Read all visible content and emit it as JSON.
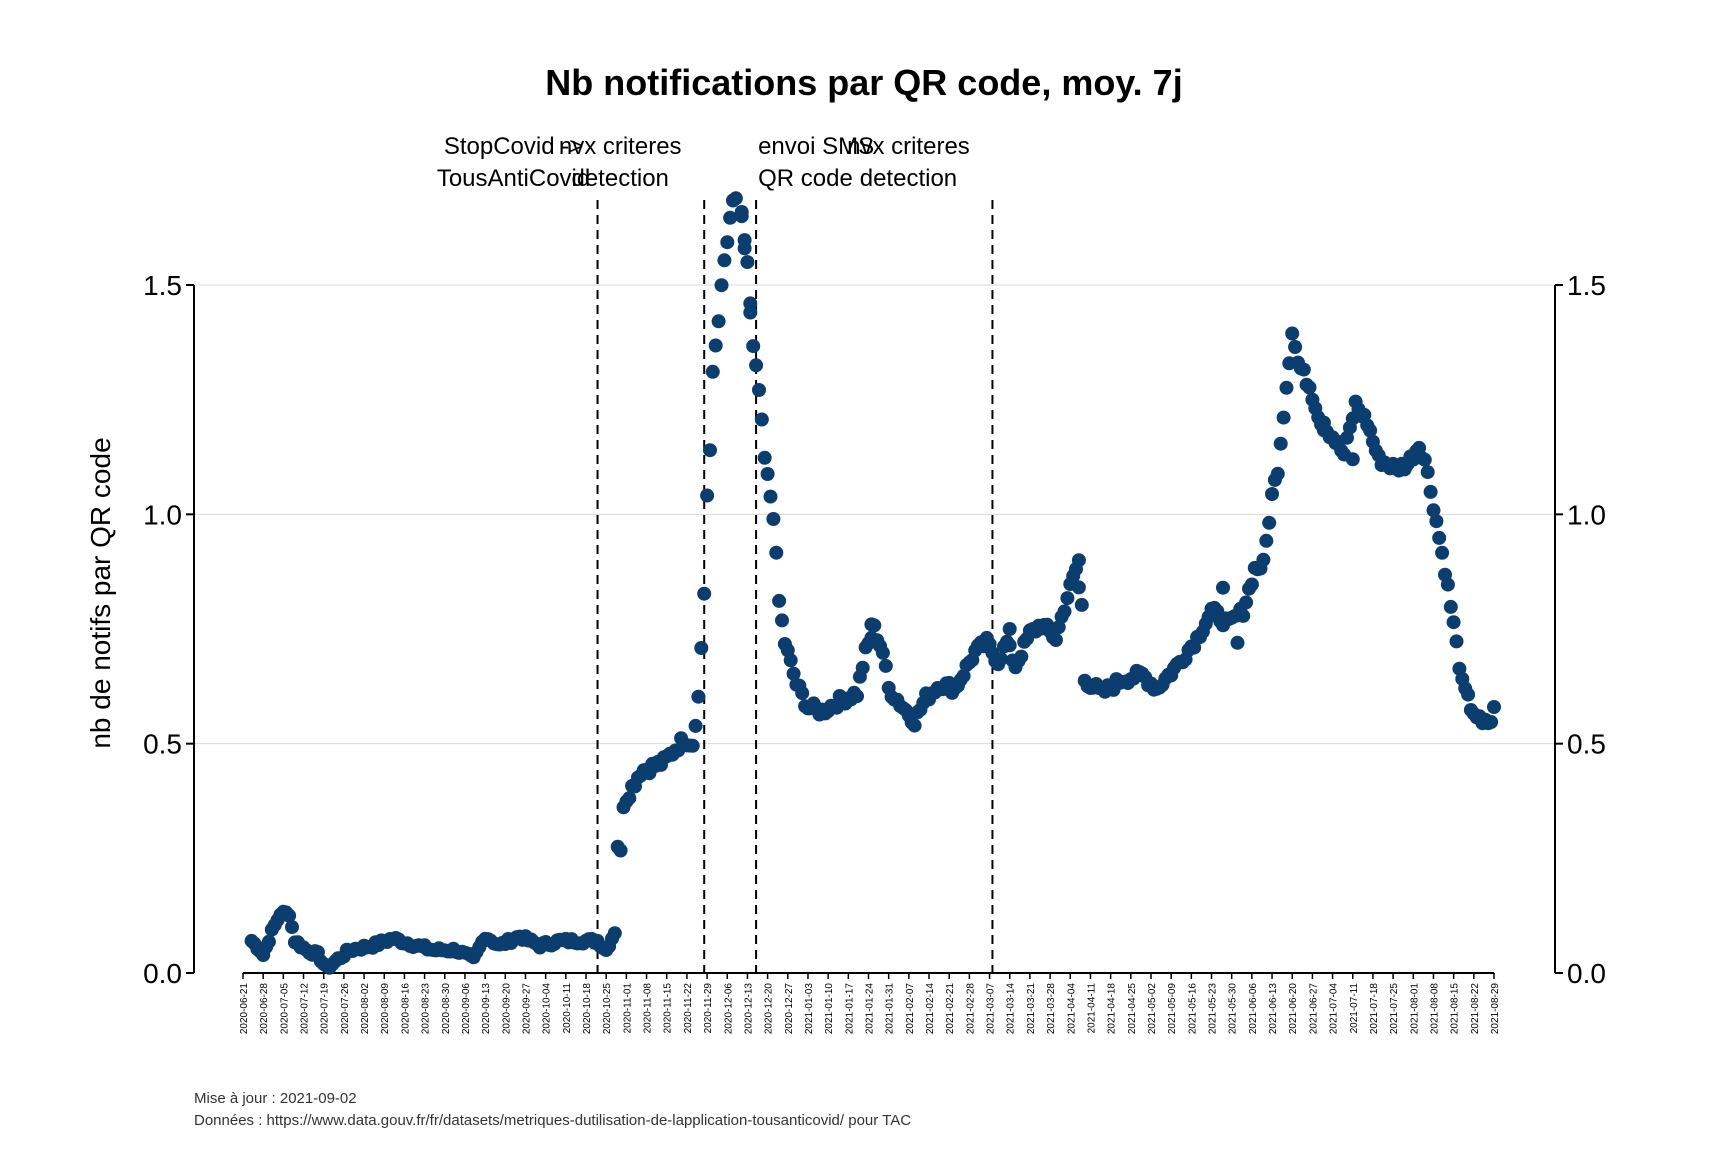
{
  "chart_data": {
    "type": "scatter",
    "title": "Nb notifications par QR code, moy. 7j",
    "ylabel": "nb de notifs par QR code",
    "ylim": [
      0,
      1.5
    ],
    "yticks": [
      "0.0",
      "0.5",
      "1.0",
      "1.5"
    ],
    "y_axis_right": true,
    "grid": "horizontal",
    "point_color": "#0b3d6e",
    "x_start": "2020-06-21",
    "x_end": "2021-09-02",
    "x_ticks": [
      "2020-06-21",
      "2020-06-28",
      "2020-07-05",
      "2020-07-12",
      "2020-07-19",
      "2020-07-26",
      "2020-08-02",
      "2020-08-09",
      "2020-08-16",
      "2020-08-23",
      "2020-08-30",
      "2020-09-06",
      "2020-09-13",
      "2020-09-20",
      "2020-09-27",
      "2020-10-04",
      "2020-10-11",
      "2020-10-18",
      "2020-10-25",
      "2020-11-01",
      "2020-11-08",
      "2020-11-15",
      "2020-11-22",
      "2020-11-29",
      "2020-12-06",
      "2020-12-13",
      "2020-12-20",
      "2020-12-27",
      "2021-01-03",
      "2021-01-10",
      "2021-01-17",
      "2021-01-24",
      "2021-01-31",
      "2021-02-07",
      "2021-02-14",
      "2021-02-21",
      "2021-02-28",
      "2021-03-07",
      "2021-03-14",
      "2021-03-21",
      "2021-03-28",
      "2021-04-04",
      "2021-04-11",
      "2021-04-18",
      "2021-04-25",
      "2021-05-02",
      "2021-05-09",
      "2021-05-16",
      "2021-05-23",
      "2021-05-30",
      "2021-06-06",
      "2021-06-13",
      "2021-06-20",
      "2021-06-27",
      "2021-07-04",
      "2021-07-11",
      "2021-07-18",
      "2021-07-25",
      "2021-08-01",
      "2021-08-08",
      "2021-08-15",
      "2021-08-22",
      "2021-08-29"
    ],
    "annotations": [
      {
        "date": "2020-10-22",
        "line1": "StopCovid ->",
        "line2": "TousAntiCovid"
      },
      {
        "date": "2020-11-28",
        "line1": "nvx criteres",
        "line2": "detection"
      },
      {
        "date": "2020-12-16",
        "line1": "envoi SMS",
        "line2": "QR code",
        "align": "start"
      },
      {
        "date": "2021-03-08",
        "line1": "nvx criteres",
        "line2": "detection"
      }
    ],
    "knots": [
      [
        "2020-06-24",
        0.07
      ],
      [
        "2020-06-27",
        0.05
      ],
      [
        "2020-06-28",
        0.04
      ],
      [
        "2020-07-01",
        0.09
      ],
      [
        "2020-07-04",
        0.13
      ],
      [
        "2020-07-07",
        0.13
      ],
      [
        "2020-07-09",
        0.07
      ],
      [
        "2020-07-13",
        0.05
      ],
      [
        "2020-07-17",
        0.04
      ],
      [
        "2020-07-20",
        0.01
      ],
      [
        "2020-07-24",
        0.03
      ],
      [
        "2020-07-28",
        0.05
      ],
      [
        "2020-08-05",
        0.06
      ],
      [
        "2020-08-12",
        0.075
      ],
      [
        "2020-08-20",
        0.06
      ],
      [
        "2020-08-26",
        0.05
      ],
      [
        "2020-09-03",
        0.05
      ],
      [
        "2020-09-09",
        0.03
      ],
      [
        "2020-09-13",
        0.08
      ],
      [
        "2020-09-18",
        0.06
      ],
      [
        "2020-09-25",
        0.08
      ],
      [
        "2020-10-02",
        0.06
      ],
      [
        "2020-10-09",
        0.07
      ],
      [
        "2020-10-16",
        0.07
      ],
      [
        "2020-10-22",
        0.07
      ],
      [
        "2020-10-25",
        0.05
      ],
      [
        "2020-10-28",
        0.09
      ],
      [
        "2020-10-29",
        0.28
      ],
      [
        "2020-10-30",
        0.26
      ],
      [
        "2020-10-31",
        0.37
      ],
      [
        "2020-11-06",
        0.44
      ],
      [
        "2020-11-14",
        0.46
      ],
      [
        "2020-11-21",
        0.51
      ],
      [
        "2020-11-24",
        0.5
      ],
      [
        "2020-11-26",
        0.6
      ],
      [
        "2020-11-27",
        0.71
      ],
      [
        "2020-11-28",
        0.83
      ],
      [
        "2020-11-29",
        1.04
      ],
      [
        "2020-11-30",
        1.13
      ],
      [
        "2020-12-01",
        1.31
      ],
      [
        "2020-12-03",
        1.43
      ],
      [
        "2020-12-05",
        1.55
      ],
      [
        "2020-12-08",
        1.68
      ],
      [
        "2020-12-10",
        1.7
      ],
      [
        "2020-12-13",
        1.55
      ],
      [
        "2020-12-15",
        1.36
      ],
      [
        "2020-12-17",
        1.27
      ],
      [
        "2020-12-19",
        1.12
      ],
      [
        "2020-12-22",
        1.0
      ],
      [
        "2020-12-24",
        0.81
      ],
      [
        "2020-12-26",
        0.72
      ],
      [
        "2020-12-30",
        0.63
      ],
      [
        "2021-01-03",
        0.58
      ],
      [
        "2021-01-08",
        0.57
      ],
      [
        "2021-01-13",
        0.59
      ],
      [
        "2021-01-20",
        0.61
      ],
      [
        "2021-01-23",
        0.7
      ],
      [
        "2021-01-26",
        0.75
      ],
      [
        "2021-01-29",
        0.7
      ],
      [
        "2021-01-31",
        0.62
      ],
      [
        "2021-02-05",
        0.58
      ],
      [
        "2021-02-09",
        0.55
      ],
      [
        "2021-02-13",
        0.6
      ],
      [
        "2021-02-18",
        0.63
      ],
      [
        "2021-02-23",
        0.62
      ],
      [
        "2021-03-02",
        0.7
      ],
      [
        "2021-03-06",
        0.72
      ],
      [
        "2021-03-10",
        0.68
      ],
      [
        "2021-03-13",
        0.72
      ],
      [
        "2021-03-16",
        0.67
      ],
      [
        "2021-03-21",
        0.74
      ],
      [
        "2021-03-25",
        0.76
      ],
      [
        "2021-03-30",
        0.73
      ],
      [
        "2021-04-03",
        0.82
      ],
      [
        "2021-04-06",
        0.88
      ],
      [
        "2021-04-08",
        0.8
      ],
      [
        "2021-04-09",
        0.64
      ],
      [
        "2021-04-15",
        0.61
      ],
      [
        "2021-04-22",
        0.64
      ],
      [
        "2021-04-29",
        0.65
      ],
      [
        "2021-05-04",
        0.62
      ],
      [
        "2021-05-11",
        0.67
      ],
      [
        "2021-05-18",
        0.73
      ],
      [
        "2021-05-23",
        0.79
      ],
      [
        "2021-05-29",
        0.76
      ],
      [
        "2021-06-03",
        0.79
      ],
      [
        "2021-06-07",
        0.88
      ],
      [
        "2021-06-10",
        0.89
      ],
      [
        "2021-06-13",
        1.04
      ],
      [
        "2021-06-15",
        1.1
      ],
      [
        "2021-06-17",
        1.22
      ],
      [
        "2021-06-20",
        1.4
      ],
      [
        "2021-06-22",
        1.33
      ],
      [
        "2021-06-26",
        1.28
      ],
      [
        "2021-06-30",
        1.2
      ],
      [
        "2021-07-04",
        1.17
      ],
      [
        "2021-07-08",
        1.13
      ],
      [
        "2021-07-12",
        1.24
      ],
      [
        "2021-07-16",
        1.2
      ],
      [
        "2021-07-20",
        1.12
      ],
      [
        "2021-07-26",
        1.1
      ],
      [
        "2021-07-30",
        1.11
      ],
      [
        "2021-08-03",
        1.15
      ],
      [
        "2021-08-05",
        1.12
      ],
      [
        "2021-08-08",
        1.02
      ],
      [
        "2021-08-12",
        0.88
      ],
      [
        "2021-08-15",
        0.76
      ],
      [
        "2021-08-18",
        0.63
      ],
      [
        "2021-08-21",
        0.58
      ],
      [
        "2021-08-25",
        0.54
      ],
      [
        "2021-08-28",
        0.55
      ],
      [
        "2021-08-29",
        0.58
      ]
    ],
    "outliers": [
      [
        "2020-12-12",
        1.58
      ],
      [
        "2020-12-14",
        1.44
      ],
      [
        "2020-12-11",
        1.65
      ],
      [
        "2021-01-25",
        0.76
      ],
      [
        "2021-03-14",
        0.75
      ],
      [
        "2021-04-07",
        0.9
      ],
      [
        "2021-05-27",
        0.84
      ],
      [
        "2021-06-01",
        0.72
      ],
      [
        "2021-07-01",
        1.2
      ],
      [
        "2021-07-11",
        1.12
      ]
    ]
  },
  "footer": {
    "updated": "Mise à jour : 2021-09-02",
    "source": "Données : https://www.data.gouv.fr/fr/datasets/metriques-dutilisation-de-lapplication-tousanticovid/ pour TAC"
  }
}
